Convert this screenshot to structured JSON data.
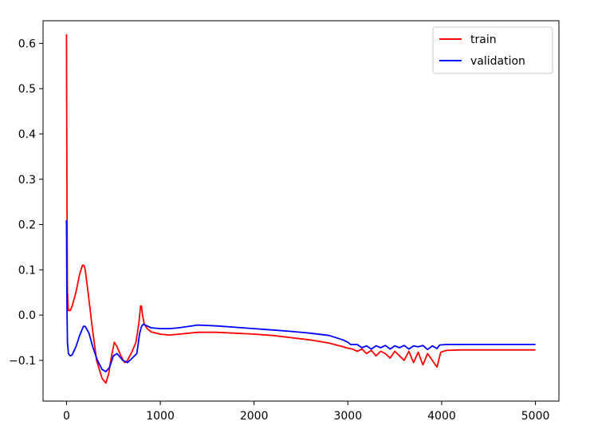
{
  "chart_data": {
    "type": "line",
    "title": "",
    "xlabel": "",
    "ylabel": "",
    "xlim": [
      -250,
      5250
    ],
    "ylim": [
      -0.19,
      0.65
    ],
    "xticks": [
      0,
      1000,
      2000,
      3000,
      4000,
      5000
    ],
    "xtick_labels": [
      "0",
      "1000",
      "2000",
      "3000",
      "4000",
      "5000"
    ],
    "yticks": [
      -0.1,
      0.0,
      0.1,
      0.2,
      0.3,
      0.4,
      0.5,
      0.6
    ],
    "ytick_labels": [
      "−0.1",
      "0.0",
      "0.1",
      "0.2",
      "0.3",
      "0.4",
      "0.5",
      "0.6"
    ],
    "grid": false,
    "legend": {
      "position": "upper right"
    },
    "series": [
      {
        "name": "train",
        "color": "#ff0000",
        "x": [
          0,
          5,
          10,
          20,
          40,
          60,
          100,
          140,
          170,
          185,
          200,
          230,
          270,
          320,
          380,
          420,
          450,
          480,
          510,
          540,
          580,
          620,
          650,
          700,
          740,
          770,
          790,
          800,
          810,
          830,
          860,
          900,
          1000,
          1100,
          1200,
          1400,
          1600,
          1800,
          2000,
          2200,
          2400,
          2600,
          2800,
          2950,
          3000,
          3050,
          3100,
          3150,
          3200,
          3250,
          3300,
          3350,
          3400,
          3450,
          3500,
          3550,
          3600,
          3650,
          3700,
          3750,
          3800,
          3850,
          3900,
          3950,
          3990,
          4050,
          4200,
          4600,
          5000
        ],
        "values": [
          0.62,
          0.25,
          0.05,
          0.01,
          0.01,
          0.02,
          0.05,
          0.09,
          0.11,
          0.11,
          0.1,
          0.05,
          -0.02,
          -0.1,
          -0.14,
          -0.15,
          -0.13,
          -0.09,
          -0.06,
          -0.07,
          -0.09,
          -0.105,
          -0.1,
          -0.08,
          -0.06,
          -0.02,
          0.02,
          0.02,
          0.0,
          -0.02,
          -0.03,
          -0.037,
          -0.042,
          -0.044,
          -0.042,
          -0.038,
          -0.038,
          -0.04,
          -0.042,
          -0.045,
          -0.05,
          -0.055,
          -0.062,
          -0.07,
          -0.073,
          -0.075,
          -0.08,
          -0.075,
          -0.085,
          -0.078,
          -0.09,
          -0.08,
          -0.085,
          -0.095,
          -0.08,
          -0.09,
          -0.1,
          -0.08,
          -0.105,
          -0.082,
          -0.11,
          -0.085,
          -0.1,
          -0.115,
          -0.082,
          -0.078,
          -0.077,
          -0.077,
          -0.077
        ]
      },
      {
        "name": "validation",
        "color": "#0000ff",
        "x": [
          0,
          5,
          10,
          20,
          40,
          60,
          100,
          140,
          180,
          200,
          240,
          280,
          330,
          380,
          420,
          460,
          500,
          540,
          600,
          650,
          700,
          750,
          780,
          800,
          820,
          850,
          900,
          1000,
          1100,
          1200,
          1400,
          1600,
          1800,
          2000,
          2200,
          2400,
          2600,
          2800,
          2950,
          3000,
          3030,
          3100,
          3150,
          3200,
          3250,
          3300,
          3350,
          3400,
          3450,
          3500,
          3550,
          3600,
          3650,
          3700,
          3750,
          3800,
          3850,
          3900,
          3950,
          3980,
          4050,
          4200,
          4600,
          5000
        ],
        "values": [
          0.21,
          0.02,
          -0.06,
          -0.085,
          -0.09,
          -0.088,
          -0.07,
          -0.045,
          -0.025,
          -0.025,
          -0.04,
          -0.07,
          -0.1,
          -0.12,
          -0.125,
          -0.115,
          -0.09,
          -0.085,
          -0.1,
          -0.105,
          -0.095,
          -0.085,
          -0.04,
          -0.025,
          -0.02,
          -0.023,
          -0.028,
          -0.03,
          -0.03,
          -0.028,
          -0.022,
          -0.024,
          -0.027,
          -0.03,
          -0.033,
          -0.036,
          -0.04,
          -0.045,
          -0.055,
          -0.06,
          -0.065,
          -0.065,
          -0.072,
          -0.068,
          -0.075,
          -0.068,
          -0.072,
          -0.067,
          -0.075,
          -0.068,
          -0.072,
          -0.067,
          -0.075,
          -0.068,
          -0.07,
          -0.067,
          -0.076,
          -0.068,
          -0.074,
          -0.066,
          -0.065,
          -0.065,
          -0.065,
          -0.065
        ]
      }
    ]
  }
}
